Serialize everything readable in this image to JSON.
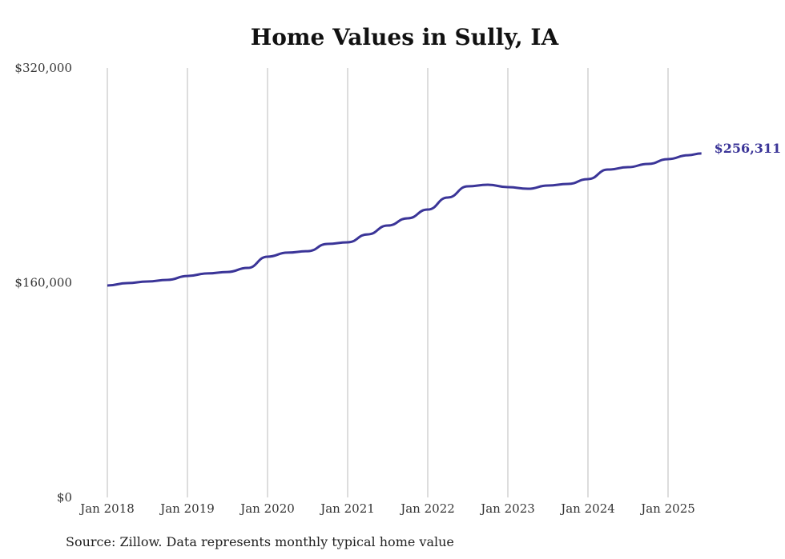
{
  "chart_data": {
    "type": "line",
    "title": "Home Values in Sully, IA",
    "xlabel": "",
    "ylabel": "",
    "ylim": [
      0,
      320000
    ],
    "y_ticks": [
      "$0",
      "$160,000",
      "$320,000"
    ],
    "y_tick_values": [
      0,
      160000,
      320000
    ],
    "x_ticks": [
      "Jan 2018",
      "Jan 2019",
      "Jan 2020",
      "Jan 2021",
      "Jan 2022",
      "Jan 2023",
      "Jan 2024",
      "Jan 2025"
    ],
    "grid": "vertical",
    "color": "#3b3598",
    "end_label": "$256,311",
    "series": [
      {
        "name": "Typical home value",
        "x": [
          "2018-01",
          "2018-04",
          "2018-07",
          "2018-10",
          "2019-01",
          "2019-04",
          "2019-07",
          "2019-10",
          "2020-01",
          "2020-04",
          "2020-07",
          "2020-10",
          "2021-01",
          "2021-04",
          "2021-07",
          "2021-10",
          "2022-01",
          "2022-04",
          "2022-07",
          "2022-10",
          "2023-01",
          "2023-04",
          "2023-07",
          "2023-10",
          "2024-01",
          "2024-04",
          "2024-07",
          "2024-10",
          "2025-01",
          "2025-04",
          "2025-06"
        ],
        "values": [
          157900,
          159700,
          160900,
          162100,
          165000,
          166900,
          168000,
          171000,
          179400,
          182400,
          183500,
          188900,
          190100,
          196000,
          202600,
          208000,
          214500,
          223500,
          231800,
          233000,
          231200,
          230000,
          232400,
          233600,
          237200,
          244300,
          246100,
          248500,
          252100,
          255000,
          256311
        ]
      }
    ]
  },
  "source": "Source: Zillow. Data represents monthly typical home value"
}
